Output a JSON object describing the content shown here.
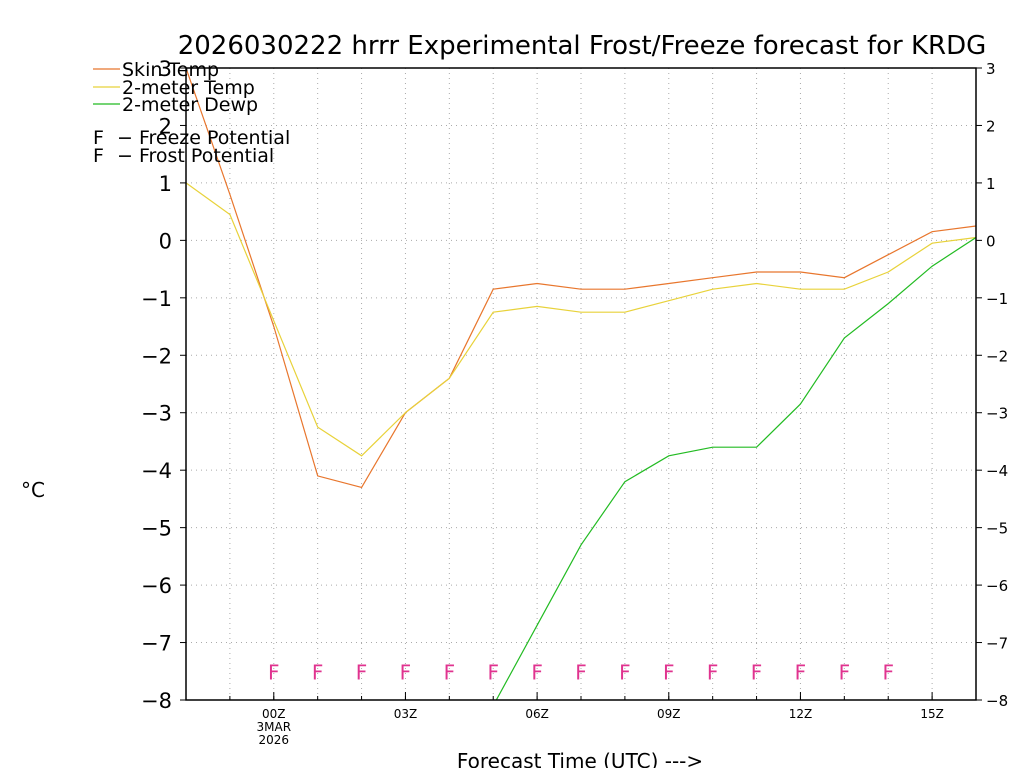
{
  "chart_data": {
    "type": "line",
    "title": "2026030222 hrrr Experimental Frost/Freeze forecast for KRDG",
    "ylabel": "°C",
    "xlabel": "Forecast Time (UTC) --->",
    "ylim": [
      -8,
      3
    ],
    "xlim": [
      -2,
      16
    ],
    "y_ticks": [
      3,
      2,
      1,
      0,
      -1,
      -2,
      -3,
      -4,
      -5,
      -6,
      -7,
      -8
    ],
    "y_tick_labels": [
      "3",
      "2",
      "1",
      "0",
      "−1",
      "−2",
      "−3",
      "−4",
      "−5",
      "−6",
      "−7",
      "−8"
    ],
    "x_ticks": [
      {
        "x": 0,
        "label": "00Z",
        "sub": [
          "3MAR",
          "2026"
        ]
      },
      {
        "x": 3,
        "label": "03Z",
        "sub": []
      },
      {
        "x": 6,
        "label": "06Z",
        "sub": []
      },
      {
        "x": 9,
        "label": "09Z",
        "sub": []
      },
      {
        "x": 12,
        "label": "12Z",
        "sub": []
      },
      {
        "x": 15,
        "label": "15Z",
        "sub": []
      }
    ],
    "series": [
      {
        "name": "Skin Temp",
        "color": "#e8762d",
        "x": [
          -2,
          -1,
          0,
          1,
          2,
          3,
          4,
          5,
          6,
          7,
          8,
          9,
          10,
          11,
          12,
          13,
          14,
          15,
          16
        ],
        "values": [
          3.0,
          0.8,
          -1.5,
          -4.1,
          -4.3,
          -3.0,
          -2.4,
          -0.85,
          -0.75,
          -0.85,
          -0.85,
          -0.75,
          -0.65,
          -0.55,
          -0.55,
          -0.65,
          -0.25,
          0.15,
          0.25
        ]
      },
      {
        "name": "2-meter Temp",
        "color": "#e8d23a",
        "x": [
          -2,
          -1,
          0,
          1,
          2,
          3,
          4,
          5,
          6,
          7,
          8,
          9,
          10,
          11,
          12,
          13,
          14,
          15,
          16
        ],
        "values": [
          1.0,
          0.45,
          -1.4,
          -3.25,
          -3.75,
          -3.0,
          -2.4,
          -1.25,
          -1.15,
          -1.25,
          -1.25,
          -1.05,
          -0.85,
          -0.75,
          -0.85,
          -0.85,
          -0.55,
          -0.05,
          0.05
        ]
      },
      {
        "name": "2-meter Dewp",
        "color": "#22bb22",
        "x": [
          5,
          6,
          7,
          8,
          9,
          10,
          11,
          12,
          13,
          14,
          15,
          16
        ],
        "values": [
          -8.1,
          -6.7,
          -5.3,
          -4.2,
          -3.75,
          -3.6,
          -3.6,
          -2.85,
          -1.7,
          -1.1,
          -0.45,
          0.05
        ]
      }
    ],
    "legend": {
      "placement": "top-left",
      "items": [
        {
          "name": "Skin Temp",
          "color": "#e8762d"
        },
        {
          "name": "2-meter Temp",
          "color": "#e8d23a"
        },
        {
          "name": "2-meter Dewp",
          "color": "#22bb22"
        }
      ],
      "markers": [
        {
          "symbol": "F",
          "label": "− Freeze Potential",
          "color": "#e0338f"
        },
        {
          "symbol": "F",
          "label": "− Frost Potential",
          "color": "#4444dd"
        }
      ]
    },
    "freeze_markers": {
      "symbol": "F",
      "color": "#e0338f",
      "y": -7.5,
      "x": [
        0,
        1,
        2,
        3,
        4,
        5,
        6,
        7,
        8,
        9,
        10,
        11,
        12,
        13,
        14
      ]
    },
    "grid": true
  }
}
